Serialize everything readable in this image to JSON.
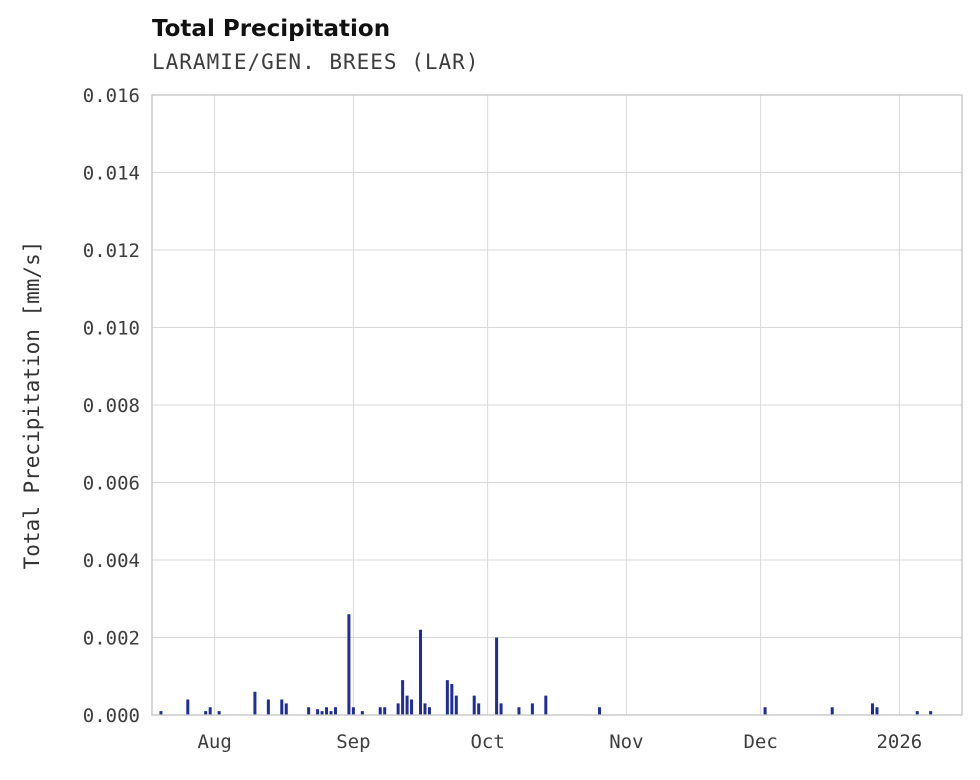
{
  "header": {
    "title": "Total Precipitation",
    "subtitle": "LARAMIE/GEN. BREES (LAR)"
  },
  "chart_data": {
    "type": "bar",
    "title": "Total Precipitation",
    "subtitle": "LARAMIE/GEN. BREES (LAR)",
    "xlabel": "",
    "ylabel": "Total Precipitation [mm/s]",
    "ylim": [
      0,
      0.016
    ],
    "ytick_step": 0.002,
    "ytick_labels": [
      "0.000",
      "0.002",
      "0.004",
      "0.006",
      "0.008",
      "0.010",
      "0.012",
      "0.014",
      "0.016"
    ],
    "x_domain": [
      "2025-07-18",
      "2026-01-15"
    ],
    "x_ticks": [
      {
        "date": "2025-08-01",
        "label": "Aug"
      },
      {
        "date": "2025-09-01",
        "label": "Sep"
      },
      {
        "date": "2025-10-01",
        "label": "Oct"
      },
      {
        "date": "2025-11-01",
        "label": "Nov"
      },
      {
        "date": "2025-12-01",
        "label": "Dec"
      },
      {
        "date": "2026-01-01",
        "label": "2026"
      }
    ],
    "grid": true,
    "legend": "none",
    "bar_color": "#1f2d9c",
    "grid_color": "#d9d9d9",
    "border_color": "#c4c4c4",
    "points": [
      {
        "date": "2025-07-20",
        "value": 0.0001
      },
      {
        "date": "2025-07-26",
        "value": 0.0004
      },
      {
        "date": "2025-07-30",
        "value": 0.0001
      },
      {
        "date": "2025-07-31",
        "value": 0.0002
      },
      {
        "date": "2025-08-02",
        "value": 0.0001
      },
      {
        "date": "2025-08-10",
        "value": 0.0006
      },
      {
        "date": "2025-08-13",
        "value": 0.0004
      },
      {
        "date": "2025-08-16",
        "value": 0.0004
      },
      {
        "date": "2025-08-17",
        "value": 0.0003
      },
      {
        "date": "2025-08-22",
        "value": 0.0002
      },
      {
        "date": "2025-08-24",
        "value": 0.00015
      },
      {
        "date": "2025-08-25",
        "value": 0.0001
      },
      {
        "date": "2025-08-26",
        "value": 0.0002
      },
      {
        "date": "2025-08-27",
        "value": 0.0001
      },
      {
        "date": "2025-08-28",
        "value": 0.0002
      },
      {
        "date": "2025-08-31",
        "value": 0.0026
      },
      {
        "date": "2025-09-01",
        "value": 0.0002
      },
      {
        "date": "2025-09-03",
        "value": 0.0001
      },
      {
        "date": "2025-09-07",
        "value": 0.0002
      },
      {
        "date": "2025-09-08",
        "value": 0.0002
      },
      {
        "date": "2025-09-11",
        "value": 0.0003
      },
      {
        "date": "2025-09-12",
        "value": 0.0009
      },
      {
        "date": "2025-09-13",
        "value": 0.0005
      },
      {
        "date": "2025-09-14",
        "value": 0.0004
      },
      {
        "date": "2025-09-16",
        "value": 0.0022
      },
      {
        "date": "2025-09-17",
        "value": 0.0003
      },
      {
        "date": "2025-09-18",
        "value": 0.0002
      },
      {
        "date": "2025-09-22",
        "value": 0.0009
      },
      {
        "date": "2025-09-23",
        "value": 0.0008
      },
      {
        "date": "2025-09-24",
        "value": 0.0005
      },
      {
        "date": "2025-09-28",
        "value": 0.0005
      },
      {
        "date": "2025-09-29",
        "value": 0.0003
      },
      {
        "date": "2025-10-03",
        "value": 0.002
      },
      {
        "date": "2025-10-04",
        "value": 0.0003
      },
      {
        "date": "2025-10-08",
        "value": 0.0002
      },
      {
        "date": "2025-10-11",
        "value": 0.0003
      },
      {
        "date": "2025-10-14",
        "value": 0.0005
      },
      {
        "date": "2025-10-26",
        "value": 0.0002
      },
      {
        "date": "2025-12-02",
        "value": 0.0002
      },
      {
        "date": "2025-12-17",
        "value": 0.0002
      },
      {
        "date": "2025-12-26",
        "value": 0.0003
      },
      {
        "date": "2025-12-27",
        "value": 0.0002
      },
      {
        "date": "2026-01-05",
        "value": 0.0001
      },
      {
        "date": "2026-01-08",
        "value": 0.0001
      }
    ]
  }
}
